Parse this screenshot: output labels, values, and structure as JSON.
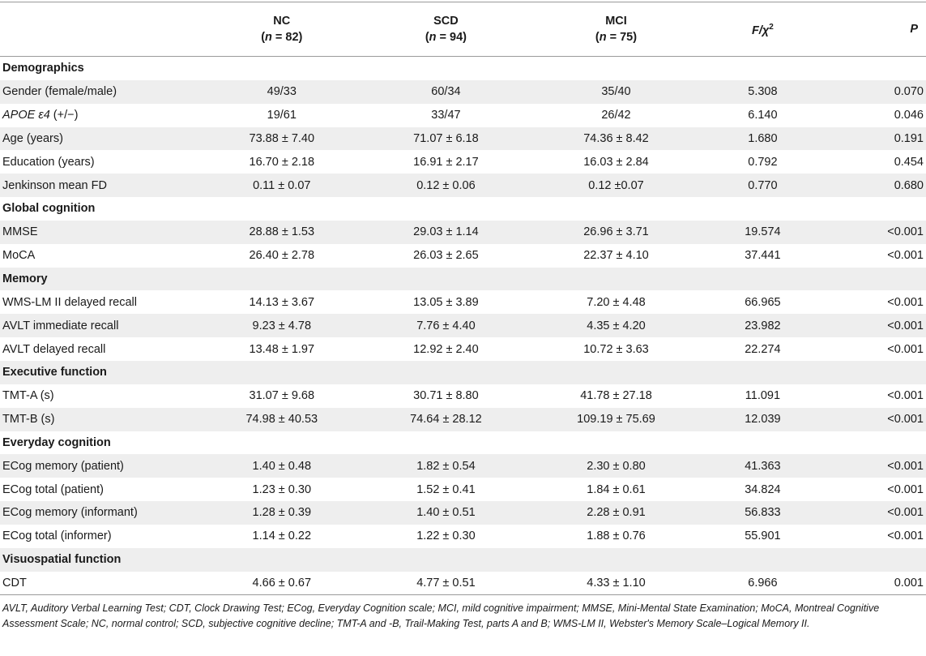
{
  "header": {
    "col_nc": "NC",
    "col_nc_sub": "(n = 82)",
    "col_scd": "SCD",
    "col_scd_sub": "(n = 94)",
    "col_mci": "MCI",
    "col_mci_sub": "(n = 75)",
    "col_f": "F/χ2",
    "col_p": "P"
  },
  "rows": [
    {
      "type": "section",
      "label": "Demographics"
    },
    {
      "type": "data",
      "label": "Gender (female/male)",
      "nc": "49/33",
      "scd": "60/34",
      "mci": "35/40",
      "f": "5.308",
      "p": "0.070"
    },
    {
      "type": "data",
      "label": "APOE ε4 (+/−)",
      "nc": "19/61",
      "scd": "33/47",
      "mci": "26/42",
      "f": "6.140",
      "p": "0.046"
    },
    {
      "type": "data",
      "label": "Age (years)",
      "nc": "73.88 ± 7.40",
      "scd": "71.07 ± 6.18",
      "mci": "74.36 ± 8.42",
      "f": "1.680",
      "p": "0.191"
    },
    {
      "type": "data",
      "label": "Education (years)",
      "nc": "16.70 ± 2.18",
      "scd": "16.91 ± 2.17",
      "mci": "16.03 ± 2.84",
      "f": "0.792",
      "p": "0.454"
    },
    {
      "type": "data",
      "label": "Jenkinson mean FD",
      "nc": "0.11 ± 0.07",
      "scd": "0.12 ± 0.06",
      "mci": "0.12 ±0.07",
      "f": "0.770",
      "p": "0.680"
    },
    {
      "type": "section",
      "label": "Global cognition"
    },
    {
      "type": "data",
      "label": "MMSE",
      "nc": "28.88 ± 1.53",
      "scd": "29.03 ± 1.14",
      "mci": "26.96 ± 3.71",
      "f": "19.574",
      "p": "<0.001"
    },
    {
      "type": "data",
      "label": "MoCA",
      "nc": "26.40 ± 2.78",
      "scd": "26.03 ± 2.65",
      "mci": "22.37 ± 4.10",
      "f": "37.441",
      "p": "<0.001"
    },
    {
      "type": "section",
      "label": "Memory"
    },
    {
      "type": "data",
      "label": "WMS-LM II delayed recall",
      "nc": "14.13 ± 3.67",
      "scd": "13.05 ± 3.89",
      "mci": "7.20 ± 4.48",
      "f": "66.965",
      "p": "<0.001"
    },
    {
      "type": "data",
      "label": "AVLT immediate recall",
      "nc": "9.23 ± 4.78",
      "scd": "7.76 ± 4.40",
      "mci": "4.35 ± 4.20",
      "f": "23.982",
      "p": "<0.001"
    },
    {
      "type": "data",
      "label": "AVLT delayed recall",
      "nc": "13.48 ± 1.97",
      "scd": "12.92 ± 2.40",
      "mci": "10.72 ± 3.63",
      "f": "22.274",
      "p": "<0.001"
    },
    {
      "type": "section",
      "label": "Executive function"
    },
    {
      "type": "data",
      "label": "TMT-A (s)",
      "nc": "31.07 ± 9.68",
      "scd": "30.71 ± 8.80",
      "mci": "41.78 ± 27.18",
      "f": "11.091",
      "p": "<0.001"
    },
    {
      "type": "data",
      "label": "TMT-B (s)",
      "nc": "74.98 ± 40.53",
      "scd": "74.64 ± 28.12",
      "mci": "109.19 ± 75.69",
      "f": "12.039",
      "p": "<0.001"
    },
    {
      "type": "section",
      "label": "Everyday cognition"
    },
    {
      "type": "data",
      "label": "ECog memory (patient)",
      "nc": "1.40 ± 0.48",
      "scd": "1.82 ± 0.54",
      "mci": "2.30 ± 0.80",
      "f": "41.363",
      "p": "<0.001"
    },
    {
      "type": "data",
      "label": "ECog total (patient)",
      "nc": "1.23 ± 0.30",
      "scd": "1.52 ± 0.41",
      "mci": "1.84 ± 0.61",
      "f": "34.824",
      "p": "<0.001"
    },
    {
      "type": "data",
      "label": "ECog memory (informant)",
      "nc": "1.28 ± 0.39",
      "scd": "1.40 ± 0.51",
      "mci": "2.28 ± 0.91",
      "f": "56.833",
      "p": "<0.001"
    },
    {
      "type": "data",
      "label": "ECog total (informer)",
      "nc": "1.14 ± 0.22",
      "scd": "1.22 ± 0.30",
      "mci": "1.88 ± 0.76",
      "f": "55.901",
      "p": "<0.001"
    },
    {
      "type": "section",
      "label": "Visuospatial function"
    },
    {
      "type": "data",
      "label": "CDT",
      "nc": "4.66 ± 0.67",
      "scd": "4.77 ± 0.51",
      "mci": "4.33 ± 1.10",
      "f": "6.966",
      "p": "0.001"
    }
  ],
  "footnote": "AVLT, Auditory Verbal Learning Test; CDT, Clock Drawing Test; ECog, Everyday Cognition scale; MCI, mild cognitive impairment; MMSE, Mini-Mental State Examination; MoCA, Montreal Cognitive Assessment Scale; NC, normal control; SCD, subjective cognitive decline; TMT-A and -B, Trail-Making Test, parts A and B; WMS-LM II, Webster's Memory Scale–Logical Memory II."
}
